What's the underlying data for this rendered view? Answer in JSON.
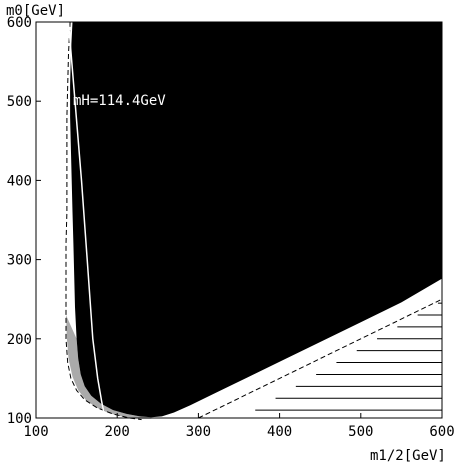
{
  "chart_data": {
    "type": "area",
    "xlabel": "m1/2[GeV]",
    "ylabel": "m0[GeV]",
    "xlim": [
      100,
      600
    ],
    "ylim": [
      100,
      600
    ],
    "x_ticks": [
      100,
      200,
      300,
      400,
      500,
      600
    ],
    "y_ticks": [
      100,
      200,
      300,
      400,
      500,
      600
    ],
    "grid": false,
    "annotations": [
      {
        "text": "mH=114.4GeV",
        "x": 132,
        "y": 500
      }
    ],
    "black_region_boundary": [
      [
        145,
        600
      ],
      [
        143,
        560
      ],
      [
        142,
        520
      ],
      [
        142,
        480
      ],
      [
        143,
        440
      ],
      [
        144,
        400
      ],
      [
        145,
        360
      ],
      [
        146,
        320
      ],
      [
        147,
        280
      ],
      [
        148,
        240
      ],
      [
        150,
        200
      ],
      [
        152,
        175
      ],
      [
        155,
        155
      ],
      [
        160,
        140
      ],
      [
        168,
        128
      ],
      [
        180,
        118
      ],
      [
        195,
        110
      ],
      [
        212,
        105
      ],
      [
        228,
        102
      ],
      [
        242,
        101
      ],
      [
        255,
        102
      ],
      [
        270,
        107
      ],
      [
        290,
        116
      ],
      [
        320,
        131
      ],
      [
        360,
        151
      ],
      [
        400,
        171
      ],
      [
        450,
        196
      ],
      [
        500,
        221
      ],
      [
        550,
        246
      ],
      [
        600,
        276
      ],
      [
        600,
        600
      ]
    ],
    "gray_band_outer": [
      [
        137,
        230
      ],
      [
        138,
        200
      ],
      [
        140,
        175
      ],
      [
        145,
        152
      ],
      [
        152,
        135
      ],
      [
        162,
        122
      ],
      [
        175,
        113
      ],
      [
        190,
        106
      ],
      [
        210,
        101
      ],
      [
        228,
        99
      ],
      [
        242,
        99
      ]
    ],
    "dashed_boundary_lower": [
      [
        300,
        100
      ],
      [
        320,
        110
      ],
      [
        340,
        120
      ],
      [
        360,
        130
      ],
      [
        380,
        140
      ],
      [
        400,
        150
      ],
      [
        420,
        160
      ],
      [
        440,
        170
      ],
      [
        460,
        180
      ],
      [
        480,
        190
      ],
      [
        500,
        200
      ],
      [
        520,
        210
      ],
      [
        540,
        220
      ],
      [
        560,
        230
      ],
      [
        580,
        240
      ],
      [
        600,
        250
      ],
      [
        600,
        260
      ]
    ],
    "dashed_boundary_left": [
      [
        142,
        600
      ],
      [
        140,
        560
      ],
      [
        139,
        520
      ],
      [
        138,
        480
      ],
      [
        138,
        440
      ],
      [
        138,
        400
      ],
      [
        138,
        360
      ],
      [
        137,
        320
      ],
      [
        137,
        280
      ],
      [
        137,
        240
      ],
      [
        137,
        200
      ],
      [
        139,
        170
      ],
      [
        143,
        150
      ],
      [
        150,
        135
      ],
      [
        160,
        123
      ],
      [
        175,
        113
      ],
      [
        195,
        105
      ],
      [
        215,
        100
      ],
      [
        230,
        98
      ]
    ],
    "higgs_line": [
      [
        140,
        600
      ],
      [
        148,
        500
      ],
      [
        156,
        400
      ],
      [
        163,
        300
      ],
      [
        170,
        200
      ],
      [
        176,
        150
      ],
      [
        181,
        120
      ],
      [
        185,
        100
      ]
    ],
    "hatch_lines": [
      {
        "y": 110,
        "x_start": 370,
        "x_end": 600
      },
      {
        "y": 125,
        "x_start": 395,
        "x_end": 600
      },
      {
        "y": 140,
        "x_start": 420,
        "x_end": 600
      },
      {
        "y": 155,
        "x_start": 445,
        "x_end": 600
      },
      {
        "y": 170,
        "x_start": 470,
        "x_end": 600
      },
      {
        "y": 185,
        "x_start": 495,
        "x_end": 600
      },
      {
        "y": 200,
        "x_start": 520,
        "x_end": 600
      },
      {
        "y": 215,
        "x_start": 545,
        "x_end": 600
      },
      {
        "y": 230,
        "x_start": 570,
        "x_end": 600
      },
      {
        "y": 245,
        "x_start": 595,
        "x_end": 600
      }
    ],
    "colors": {
      "region": "#000000",
      "band": "#aaaaaa",
      "hatch": "#000000",
      "higgs_line": "#ffffff"
    }
  }
}
